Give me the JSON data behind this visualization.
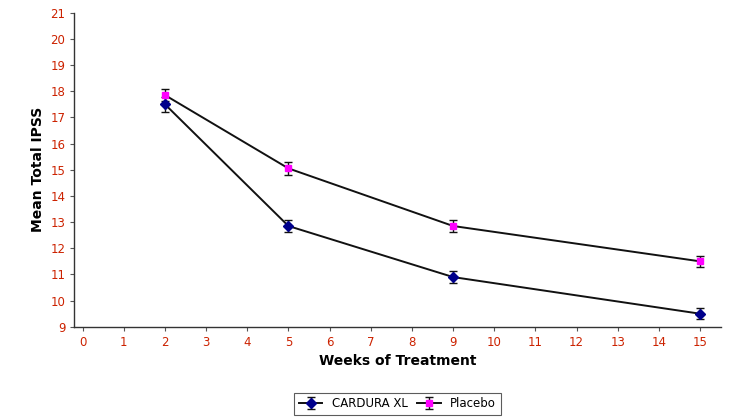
{
  "title": "",
  "xlabel": "Weeks of Treatment",
  "ylabel": "Mean Total IPSS",
  "xlim": [
    -0.2,
    15.5
  ],
  "ylim": [
    9,
    21
  ],
  "xticks": [
    0,
    1,
    2,
    3,
    4,
    5,
    6,
    7,
    8,
    9,
    10,
    11,
    12,
    13,
    14,
    15
  ],
  "yticks": [
    9,
    10,
    11,
    12,
    13,
    14,
    15,
    16,
    17,
    18,
    19,
    20,
    21
  ],
  "weeks": [
    2,
    5,
    9,
    15
  ],
  "cardura_values": [
    17.5,
    12.85,
    10.9,
    9.5
  ],
  "cardura_se": [
    0.28,
    0.22,
    0.22,
    0.22
  ],
  "placebo_values": [
    17.85,
    15.05,
    12.85,
    11.5
  ],
  "placebo_se": [
    0.22,
    0.25,
    0.22,
    0.22
  ],
  "cardura_color": "#00008B",
  "placebo_color": "#FF00FF",
  "line_color": "#111111",
  "axis_label_color": "#000000",
  "tick_label_color": "#cc2200",
  "xlabel_color": "#000000",
  "ylabel_color": "#000000",
  "legend_labels": [
    "CARDURA XL",
    "Placebo"
  ],
  "figsize": [
    7.43,
    4.19
  ],
  "dpi": 100
}
